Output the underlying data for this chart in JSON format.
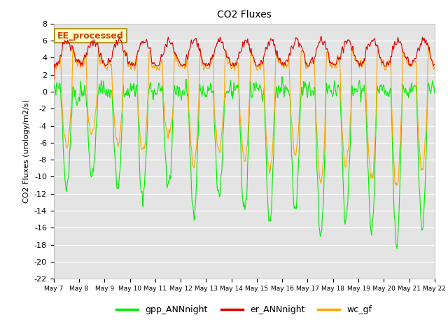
{
  "title": "CO2 Fluxes",
  "ylabel": "CO2 Fluxes (urology/m2/s)",
  "ylim": [
    -22,
    8
  ],
  "yticks": [
    -22,
    -20,
    -18,
    -16,
    -14,
    -12,
    -10,
    -8,
    -6,
    -4,
    -2,
    0,
    2,
    4,
    6,
    8
  ],
  "x_tick_labels": [
    "May 7",
    "May 8",
    "May 9",
    "May 10",
    "May 11",
    "May 12",
    "May 13",
    "May 14",
    "May 15",
    "May 16",
    "May 17",
    "May 18",
    "May 19",
    "May 20",
    "May 21",
    "May 22"
  ],
  "color_gpp": "#00ee00",
  "color_er": "#dd0000",
  "color_wc": "#ffa500",
  "legend_label_gpp": "gpp_ANNnight",
  "legend_label_er": "er_ANNnight",
  "legend_label_wc": "wc_gf",
  "legend_box_label": "EE_processed",
  "background_color": "#ffffff",
  "plot_bg_color": "#e4e4e4",
  "linewidth": 0.8
}
